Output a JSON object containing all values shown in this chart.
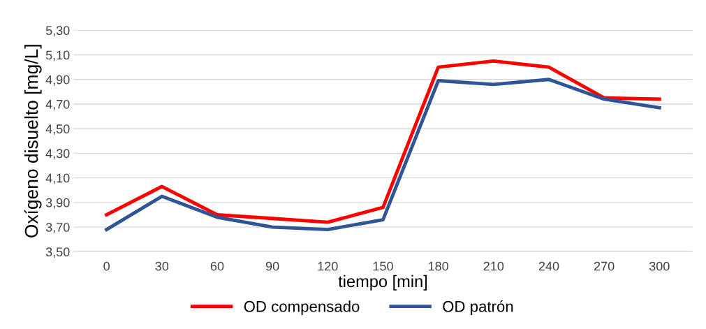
{
  "chart_data": {
    "type": "line",
    "xlabel": "tiempo [min]",
    "ylabel": "Oxígeno disuelto [mg/L]",
    "categories": [
      "0",
      "30",
      "60",
      "90",
      "120",
      "150",
      "180",
      "210",
      "240",
      "270",
      "300"
    ],
    "series": [
      {
        "name": "OD compensado",
        "color": "#ff0000",
        "values": [
          3.8,
          4.03,
          3.8,
          3.77,
          3.74,
          3.86,
          5.0,
          5.05,
          5.0,
          4.75,
          4.74
        ]
      },
      {
        "name": "OD patrón",
        "color": "#2f5597",
        "values": [
          3.68,
          3.95,
          3.78,
          3.7,
          3.68,
          3.76,
          4.89,
          4.86,
          4.9,
          4.74,
          4.67
        ]
      }
    ],
    "ylim": [
      3.5,
      5.3
    ],
    "yticks": [
      {
        "value": 3.5,
        "label": "3,50"
      },
      {
        "value": 3.7,
        "label": "3,70"
      },
      {
        "value": 3.9,
        "label": "3,90"
      },
      {
        "value": 4.1,
        "label": "4,10"
      },
      {
        "value": 4.3,
        "label": "4,30"
      },
      {
        "value": 4.5,
        "label": "4,50"
      },
      {
        "value": 4.7,
        "label": "4,70"
      },
      {
        "value": 4.9,
        "label": "4,90"
      },
      {
        "value": 5.1,
        "label": "5,10"
      },
      {
        "value": 5.3,
        "label": "5,30"
      }
    ],
    "grid": "y",
    "legend": "bottom",
    "marker": "none",
    "line_style": "solid"
  }
}
